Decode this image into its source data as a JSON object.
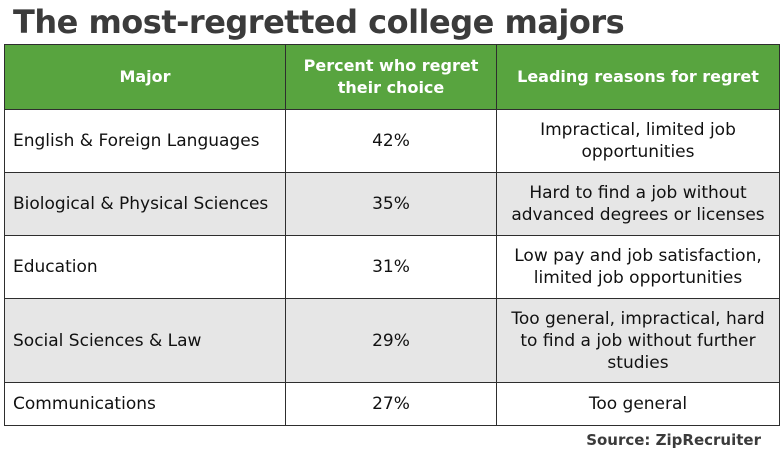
{
  "title": "The most-regretted college majors",
  "source": "Source: ZipRecruiter",
  "colors": {
    "header_bg": "#58a43f",
    "header_text": "#ffffff",
    "title_text": "#3b3b3b",
    "row_alt_bg": "#e6e6e6",
    "row_bg": "#ffffff",
    "border": "#2e2e2e"
  },
  "chart_data": {
    "type": "table",
    "title": "The most-regretted college majors",
    "columns": [
      "Major",
      "Percent who regret their choice",
      "Leading reasons for regret"
    ],
    "rows": [
      [
        "English & Foreign Languages",
        "42%",
        "Impractical, limited job opportunities"
      ],
      [
        "Biological & Physical Sciences",
        "35%",
        "Hard to find a job without advanced degrees or licenses"
      ],
      [
        "Education",
        "31%",
        "Low pay and job satisfaction, limited job opportunities"
      ],
      [
        "Social Sciences & Law",
        "29%",
        "Too general, impractical, hard to find a job without further studies"
      ],
      [
        "Communications",
        "27%",
        "Too general"
      ]
    ],
    "values": [
      42,
      35,
      31,
      29,
      27
    ],
    "source": "Source: ZipRecruiter"
  }
}
